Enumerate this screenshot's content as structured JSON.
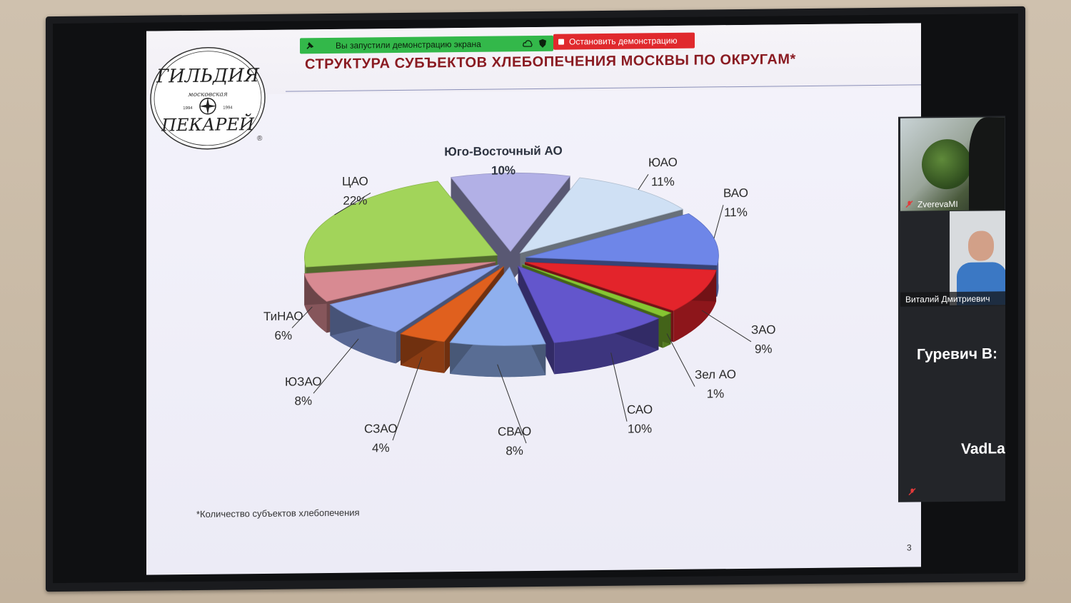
{
  "share_bar": {
    "status_text": "Вы запустили демонстрацию экрана",
    "stop_label": "Остановить демонстрацию"
  },
  "slide": {
    "title": "СТРУКТУРА  СУБЪЕКТОВ ХЛЕБОПЕЧЕНИЯ МОСКВЫ ПО ОКРУГАМ*",
    "footnote": "*Количество субъектов хлебопечения",
    "page_number": "3",
    "logo": {
      "text_top": "ГИЛЬДИЯ",
      "text_mid": "московская",
      "text_bottom": "ПЕКАРЕЙ",
      "year_left": "1994",
      "year_right": "1994"
    }
  },
  "chart_data": {
    "type": "pie",
    "title": "",
    "slices": [
      {
        "name": "Юго-Восточный АО",
        "label_text": "Юго-Восточный АО",
        "value": 10,
        "value_text": "10%",
        "color": "#b2b0e6"
      },
      {
        "name": "ЮАО",
        "label_text": "ЮАО",
        "value": 11,
        "value_text": "11%",
        "color": "#cfe0f4"
      },
      {
        "name": "ВАО",
        "label_text": "ВАО",
        "value": 11,
        "value_text": "11%",
        "color": "#6e86e8"
      },
      {
        "name": "ЗАО",
        "label_text": "ЗАО",
        "value": 9,
        "value_text": "9%",
        "color": "#e3242b"
      },
      {
        "name": "Зел АО",
        "label_text": "Зел АО",
        "value": 1,
        "value_text": "1%",
        "color": "#86c632"
      },
      {
        "name": "САО",
        "label_text": "САО",
        "value": 10,
        "value_text": "10%",
        "color": "#6356cc"
      },
      {
        "name": "СВАО",
        "label_text": "СВАО",
        "value": 8,
        "value_text": "8%",
        "color": "#8fb0ee"
      },
      {
        "name": "СЗАО",
        "label_text": "СЗАО",
        "value": 4,
        "value_text": "4%",
        "color": "#e0601e"
      },
      {
        "name": "ЮЗАО",
        "label_text": "ЮЗАО",
        "value": 8,
        "value_text": "8%",
        "color": "#8ea6ee"
      },
      {
        "name": "ТиНАО",
        "label_text": "ТиНАО",
        "value": 6,
        "value_text": "6%",
        "color": "#d88a92"
      },
      {
        "name": "ЦАО",
        "label_text": "ЦАО",
        "value": 22,
        "value_text": "22%",
        "color": "#a2d45a"
      }
    ]
  },
  "participants": {
    "p1_name": "ZverevaMI",
    "p2_name": "Виталий Дмитриевич",
    "p3_name": "Гуревич  В:",
    "p4_name": "VadLa"
  }
}
